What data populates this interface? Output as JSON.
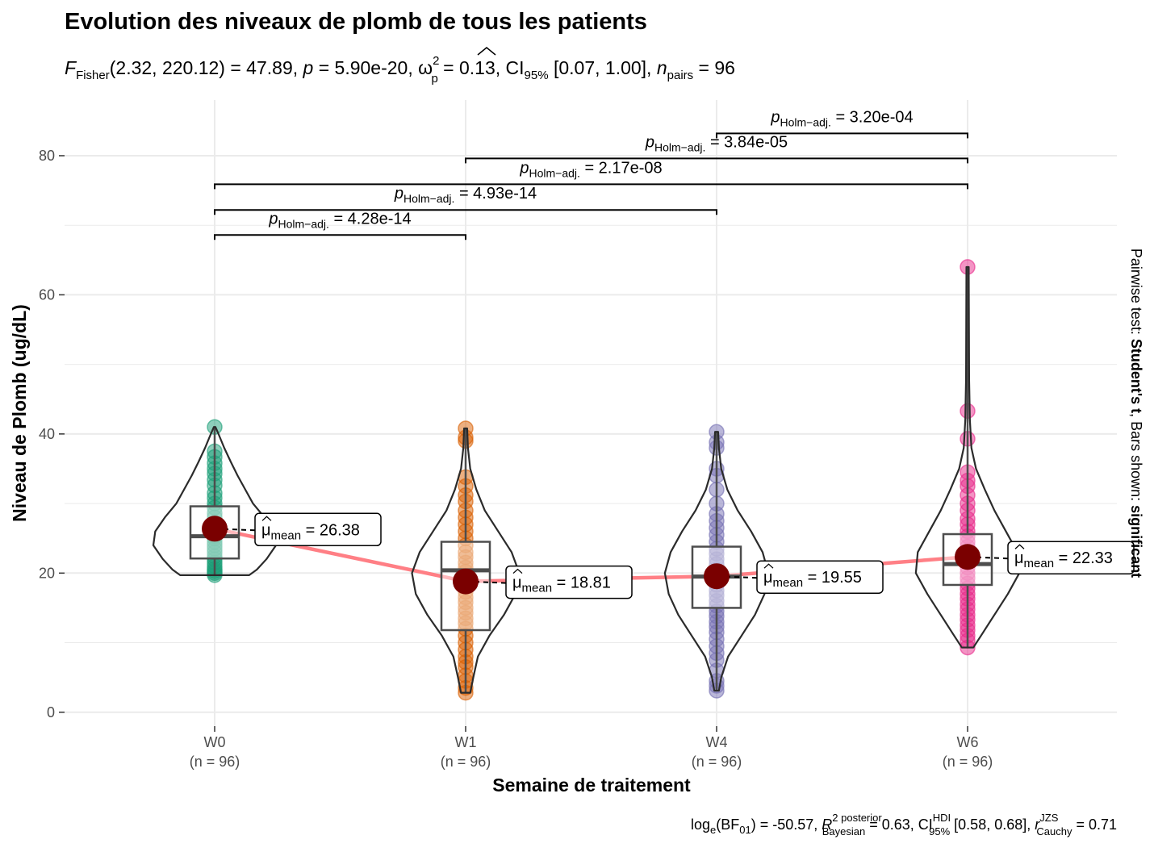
{
  "title": "Evolution des niveaux de plomb de tous les patients",
  "subtitle": {
    "F": "F",
    "F_sub": "Fisher",
    "df_open": "(2.32, 220.12)",
    "eq1": " = 47.89, ",
    "p": "p",
    "eq2": " = 5.90e-20, ",
    "omega": "ω",
    "omega_sup": "2",
    "omega_sub": "p",
    "eq3": " = 0.13, CI",
    "ci_sub": "95%",
    "eq4": " [0.07, 1.00], ",
    "n": "n",
    "n_sub": "pairs",
    "eq5": " = 96"
  },
  "caption": {
    "log": "log",
    "log_sub": "e",
    "bf_open": "(BF",
    "bf_sub": "01",
    "bf_close": ") = -50.57, ",
    "R": "R",
    "R_sup": "2 posterior",
    "R_sub": "Bayesian",
    "eq1": " = 0.63, CI",
    "ci_sup": "HDI",
    "ci_sub": "95%",
    "eq2": " [0.58, 0.68], ",
    "r": "r",
    "r_sup": "JZS",
    "r_sub": "Cauchy",
    "eq3": " = 0.71"
  },
  "right_caption": {
    "prefix": "Pairwise test: ",
    "test": "Student's t",
    "middle": ", Bars shown: ",
    "shown": "significant"
  },
  "chart_data": {
    "type": "violin-box-scatter",
    "xlabel": "Semaine de traitement",
    "ylabel": "Niveau de Plomb (ug/dL)",
    "ylim": [
      -2,
      88
    ],
    "yticks": [
      0,
      20,
      40,
      60,
      80
    ],
    "grid": true,
    "categories": [
      "W0",
      "W1",
      "W4",
      "W6"
    ],
    "category_n": [
      "(n = 96)",
      "(n = 96)",
      "(n = 96)",
      "(n = 96)"
    ],
    "colors": [
      "#1B9E77",
      "#D95F02",
      "#7570B3",
      "#E7298A"
    ],
    "mean_line_color": "#FF7F85",
    "mean_point_color": "#7A0000",
    "groups": [
      {
        "name": "W0",
        "mean": 26.38,
        "mean_label": "= 26.38",
        "mean_label_sub": "mean",
        "box": {
          "q1": 22.1,
          "median": 25.3,
          "q3": 29.6,
          "min": 19.7,
          "max": 41.0
        },
        "violin": [
          [
            19.7,
            0.9
          ],
          [
            20.5,
            1.1
          ],
          [
            22,
            1.35
          ],
          [
            24,
            1.6
          ],
          [
            26,
            1.55
          ],
          [
            28,
            1.3
          ],
          [
            30,
            1.0
          ],
          [
            32,
            0.8
          ],
          [
            34,
            0.6
          ],
          [
            36,
            0.42
          ],
          [
            38,
            0.25
          ],
          [
            40,
            0.1
          ],
          [
            41,
            0.02
          ]
        ],
        "points": [
          19.7,
          20.0,
          20.3,
          20.6,
          21.0,
          21.5,
          22.0,
          22.4,
          23.0,
          23.5,
          24.0,
          24.5,
          25.0,
          25.3,
          25.8,
          26.2,
          26.7,
          27.2,
          28.0,
          28.6,
          29.4,
          30.0,
          30.8,
          31.5,
          32.6,
          33.4,
          34.3,
          35.0,
          35.8,
          36.7,
          37.5,
          41.0
        ]
      },
      {
        "name": "W1",
        "mean": 18.81,
        "mean_label": "= 18.81",
        "mean_label_sub": "mean",
        "box": {
          "q1": 11.8,
          "median": 20.4,
          "q3": 24.5,
          "min": 2.8,
          "max": 40.8
        },
        "violin": [
          [
            2.8,
            0.12
          ],
          [
            5,
            0.2
          ],
          [
            8,
            0.32
          ],
          [
            11,
            0.62
          ],
          [
            14,
            1.0
          ],
          [
            17,
            1.3
          ],
          [
            20,
            1.4
          ],
          [
            23,
            1.2
          ],
          [
            26,
            0.85
          ],
          [
            29,
            0.5
          ],
          [
            32,
            0.28
          ],
          [
            35,
            0.12
          ],
          [
            38,
            0.06
          ],
          [
            40.8,
            0.04
          ]
        ],
        "points": [
          2.8,
          3.5,
          4.5,
          5.3,
          6.5,
          7.2,
          8.0,
          9.0,
          10.0,
          11.0,
          12.0,
          12.8,
          13.5,
          14.3,
          15.0,
          15.8,
          16.5,
          17.3,
          18.0,
          18.8,
          19.5,
          20.2,
          20.8,
          21.5,
          22.3,
          23.0,
          24.0,
          25.0,
          26.0,
          27.0,
          28.0,
          29.0,
          30.3,
          31.2,
          32.5,
          33.8,
          39.0,
          39.5,
          40.8
        ]
      },
      {
        "name": "W4",
        "mean": 19.55,
        "mean_label": "= 19.55",
        "mean_label_sub": "mean",
        "box": {
          "q1": 15.0,
          "median": 19.5,
          "q3": 23.8,
          "min": 3.1,
          "max": 40.3
        },
        "violin": [
          [
            3.1,
            0.06
          ],
          [
            5,
            0.12
          ],
          [
            8,
            0.3
          ],
          [
            11,
            0.65
          ],
          [
            14,
            1.0
          ],
          [
            17,
            1.25
          ],
          [
            20,
            1.35
          ],
          [
            23,
            1.2
          ],
          [
            26,
            0.9
          ],
          [
            29,
            0.55
          ],
          [
            32,
            0.28
          ],
          [
            35,
            0.12
          ],
          [
            38,
            0.06
          ],
          [
            40.3,
            0.04
          ]
        ],
        "points": [
          3.1,
          3.8,
          4.5,
          6.0,
          7.5,
          8.5,
          9.5,
          10.5,
          11.5,
          12.3,
          13.0,
          13.8,
          14.5,
          15.3,
          16.0,
          16.8,
          17.5,
          18.3,
          19.0,
          19.8,
          20.5,
          21.3,
          22.0,
          22.8,
          23.5,
          24.5,
          25.5,
          26.5,
          27.5,
          28.5,
          30.0,
          32.0,
          34.0,
          35.0,
          38.0,
          38.8,
          40.3
        ]
      },
      {
        "name": "W6",
        "mean": 22.33,
        "mean_label": "= 22.33",
        "mean_label_sub": "mean",
        "box": {
          "q1": 18.3,
          "median": 21.3,
          "q3": 25.6,
          "min": 9.3,
          "max": 64.0
        },
        "violin": [
          [
            9.3,
            0.15
          ],
          [
            11,
            0.35
          ],
          [
            14,
            0.7
          ],
          [
            17,
            1.05
          ],
          [
            20,
            1.35
          ],
          [
            23,
            1.3
          ],
          [
            26,
            1.0
          ],
          [
            29,
            0.7
          ],
          [
            32,
            0.45
          ],
          [
            35,
            0.22
          ],
          [
            38,
            0.1
          ],
          [
            42,
            0.06
          ],
          [
            48,
            0.04
          ],
          [
            56,
            0.035
          ],
          [
            64,
            0.03
          ]
        ],
        "points": [
          9.3,
          10.3,
          11.0,
          11.8,
          12.5,
          13.3,
          14.0,
          14.8,
          15.5,
          16.3,
          17.0,
          17.8,
          18.5,
          19.3,
          20.0,
          20.8,
          21.5,
          22.3,
          23.0,
          23.8,
          24.5,
          25.3,
          26.0,
          27.0,
          27.8,
          29.0,
          30.0,
          31.2,
          32.5,
          33.3,
          34.5,
          39.3,
          43.3,
          64.0
        ]
      }
    ],
    "pairwise": [
      {
        "from": "W0",
        "to": "W1",
        "y": 68.6,
        "label_p": "p",
        "label_sub": "Holm−adj.",
        "label_value": "= 4.28e-14"
      },
      {
        "from": "W0",
        "to": "W4",
        "y": 72.2,
        "label_p": "p",
        "label_sub": "Holm−adj.",
        "label_value": "= 4.93e-14"
      },
      {
        "from": "W0",
        "to": "W6",
        "y": 75.9,
        "label_p": "p",
        "label_sub": "Holm−adj.",
        "label_value": "= 2.17e-08"
      },
      {
        "from": "W1",
        "to": "W6",
        "y": 79.6,
        "label_p": "p",
        "label_sub": "Holm−adj.",
        "label_value": "= 3.84e-05"
      },
      {
        "from": "W4",
        "to": "W6",
        "y": 83.2,
        "label_p": "p",
        "label_sub": "Holm−adj.",
        "label_value": "= 3.20e-04"
      }
    ]
  }
}
